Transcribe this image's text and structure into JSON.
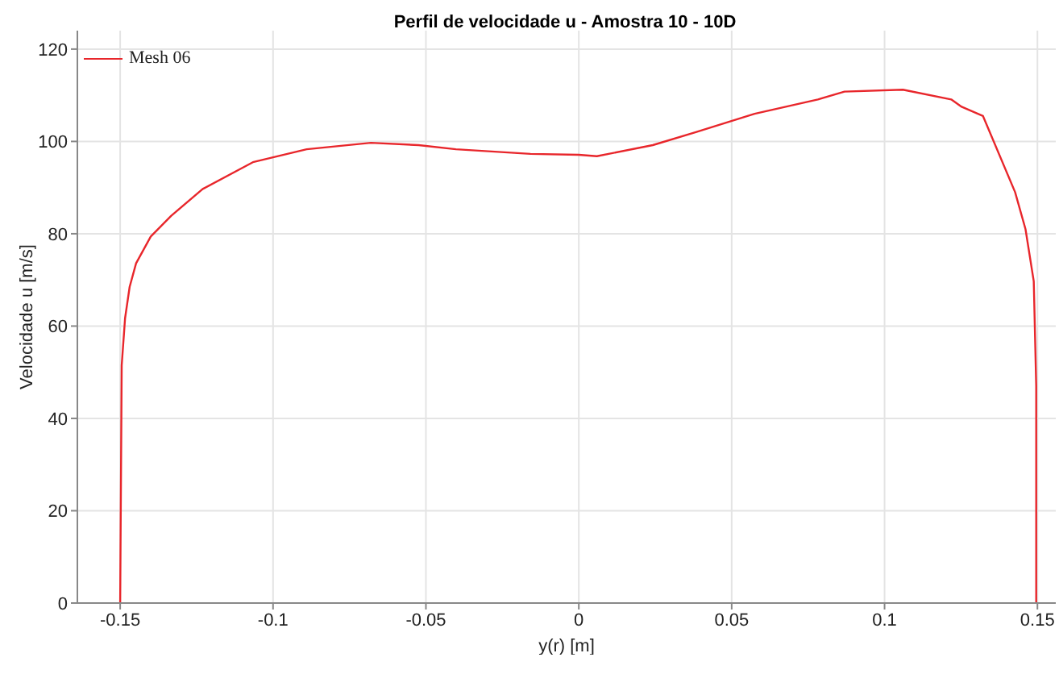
{
  "chart_data": {
    "type": "line",
    "title": "Perfil de velocidade u - Amostra 10 - 10D",
    "xlabel": "y(r) [m]",
    "ylabel": "Velocidade u [m/s]",
    "series": [
      {
        "name": "Mesh 06",
        "color": "#e8262b",
        "x": [
          -0.15,
          -0.1497,
          -0.1495,
          -0.1484,
          -0.1469,
          -0.1448,
          -0.14,
          -0.1333,
          -0.123,
          -0.1066,
          -0.089,
          -0.068,
          -0.0524,
          -0.0402,
          -0.0158,
          0,
          0.0059,
          0.0242,
          0.0383,
          0.0575,
          0.0782,
          0.0869,
          0.106,
          0.1218,
          0.1252,
          0.1322,
          0.1427,
          0.1461,
          0.1488,
          0.1496,
          0.1496
        ],
        "values": [
          0,
          31,
          51.5,
          61.7,
          68.5,
          73.6,
          79.4,
          83.9,
          89.7,
          95.5,
          98.3,
          99.7,
          99.2,
          98.3,
          97.3,
          97.1,
          96.8,
          99.2,
          102,
          106,
          109.1,
          110.8,
          111.2,
          109.1,
          107.5,
          105.5,
          89,
          81,
          69.7,
          47,
          0
        ]
      }
    ],
    "xlim": [
      -0.164,
      0.156
    ],
    "xticks": [
      -0.15,
      -0.1,
      -0.05,
      0,
      0.05,
      0.1,
      0.15
    ],
    "ylim": [
      0,
      124
    ],
    "yticks": [
      0,
      20,
      40,
      60,
      80,
      100,
      120
    ],
    "grid": true,
    "legend": "top left",
    "marker": "none",
    "line_style": "solid"
  }
}
